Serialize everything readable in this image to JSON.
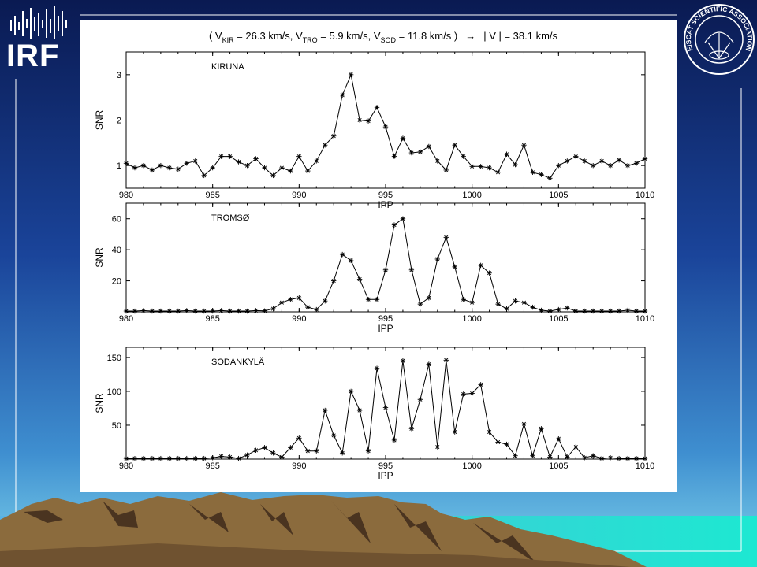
{
  "branding": {
    "left_logo_text": "IRF",
    "right_logo_text": "EISCAT SCIENTIFIC ASSOCIATION"
  },
  "colors": {
    "background_top": "#0a1e56",
    "background_mid": "#1d4fa2",
    "background_bottom": "#5fc0e0",
    "mountain_fill": "#8a6a3c",
    "teal_band": "#24e0d0",
    "panel": "#ffffff"
  },
  "header": {
    "title_parts": {
      "open": "( V",
      "kir_sub": "KIR",
      "kir_val": " = 26.3 km/s, V",
      "tro_sub": "TRO",
      "tro_val": " = 5.9 km/s, V",
      "sod_sub": "SOD",
      "sod_val": " = 11.8 km/s )",
      "arrow": "→",
      "result": "| V | = 38.1 km/s"
    }
  },
  "chart_data": [
    {
      "type": "line",
      "station": "KIRUNA",
      "xlabel": "IPP",
      "ylabel": "SNR",
      "xlim": [
        980,
        1010
      ],
      "ylim": [
        0.5,
        3.5
      ],
      "xticks": [
        980,
        985,
        990,
        995,
        1000,
        1005,
        1010
      ],
      "yticks": [
        1,
        2,
        3
      ],
      "x": [
        980,
        980.5,
        981,
        981.5,
        982,
        982.5,
        983,
        983.5,
        984,
        984.5,
        985,
        985.5,
        986,
        986.5,
        987,
        987.5,
        988,
        988.5,
        989,
        989.5,
        990,
        990.5,
        991,
        991.5,
        992,
        992.5,
        993,
        993.5,
        994,
        994.5,
        995,
        995.5,
        996,
        996.5,
        997,
        997.5,
        998,
        998.5,
        999,
        999.5,
        1000,
        1000.5,
        1001,
        1001.5,
        1002,
        1002.5,
        1003,
        1003.5,
        1004,
        1004.5,
        1005,
        1005.5,
        1006,
        1006.5,
        1007,
        1007.5,
        1008,
        1008.5,
        1009,
        1009.5,
        1010
      ],
      "y": [
        1.05,
        0.95,
        1.0,
        0.9,
        1.0,
        0.95,
        0.92,
        1.05,
        1.1,
        0.78,
        0.95,
        1.2,
        1.2,
        1.08,
        1.0,
        1.15,
        0.95,
        0.78,
        0.95,
        0.88,
        1.2,
        0.88,
        1.1,
        1.45,
        1.65,
        2.55,
        3.0,
        2.0,
        1.98,
        2.28,
        1.85,
        1.2,
        1.6,
        1.28,
        1.3,
        1.42,
        1.1,
        0.9,
        1.45,
        1.2,
        0.98,
        0.98,
        0.95,
        0.85,
        1.25,
        1.02,
        1.45,
        0.85,
        0.8,
        0.72,
        1.0,
        1.1,
        1.2,
        1.1,
        1.0,
        1.1,
        1.0,
        1.12,
        1.0,
        1.05,
        1.15
      ]
    },
    {
      "type": "line",
      "station": "TROMSØ",
      "xlabel": "IPP",
      "ylabel": "SNR",
      "xlim": [
        980,
        1010
      ],
      "ylim": [
        0,
        70
      ],
      "xticks": [
        980,
        985,
        990,
        995,
        1000,
        1005,
        1010
      ],
      "yticks": [
        20,
        40,
        60
      ],
      "x": [
        980,
        980.5,
        981,
        981.5,
        982,
        982.5,
        983,
        983.5,
        984,
        984.5,
        985,
        985.5,
        986,
        986.5,
        987,
        987.5,
        988,
        988.5,
        989,
        989.5,
        990,
        990.5,
        991,
        991.5,
        992,
        992.5,
        993,
        993.5,
        994,
        994.5,
        995,
        995.5,
        996,
        996.5,
        997,
        997.5,
        998,
        998.5,
        999,
        999.5,
        1000,
        1000.5,
        1001,
        1001.5,
        1002,
        1002.5,
        1003,
        1003.5,
        1004,
        1004.5,
        1005,
        1005.5,
        1006,
        1006.5,
        1007,
        1007.5,
        1008,
        1008.5,
        1009,
        1009.5,
        1010
      ],
      "y": [
        0.5,
        0.5,
        0.8,
        0.5,
        0.5,
        0.5,
        0.5,
        0.8,
        0.5,
        0.5,
        0.5,
        0.8,
        0.5,
        0.5,
        0.5,
        0.8,
        0.6,
        2,
        6,
        8,
        9,
        3,
        1.5,
        7,
        20,
        37,
        33,
        21,
        8,
        8,
        27,
        56,
        60,
        27,
        5,
        9,
        34,
        48,
        29,
        8,
        6,
        30,
        25,
        5,
        2,
        7,
        6,
        3,
        1,
        0.5,
        1.5,
        2.5,
        0.5,
        0.5,
        0.5,
        0.5,
        0.5,
        0.5,
        1,
        0.5,
        0.5
      ]
    },
    {
      "type": "line",
      "station": "SODANKYLÄ",
      "xlabel": "IPP",
      "ylabel": "SNR",
      "xlim": [
        980,
        1010
      ],
      "ylim": [
        0,
        165
      ],
      "xticks": [
        980,
        985,
        990,
        995,
        1000,
        1005,
        1010
      ],
      "yticks": [
        50,
        100,
        150
      ],
      "x": [
        980,
        980.5,
        981,
        981.5,
        982,
        982.5,
        983,
        983.5,
        984,
        984.5,
        985,
        985.5,
        986,
        986.5,
        987,
        987.5,
        988,
        988.5,
        989,
        989.5,
        990,
        990.5,
        991,
        991.5,
        992,
        992.5,
        993,
        993.5,
        994,
        994.5,
        995,
        995.5,
        996,
        996.5,
        997,
        997.5,
        998,
        998.5,
        999,
        999.5,
        1000,
        1000.5,
        1001,
        1001.5,
        1002,
        1002.5,
        1003,
        1003.5,
        1004,
        1004.5,
        1005,
        1005.5,
        1006,
        1006.5,
        1007,
        1007.5,
        1008,
        1008.5,
        1009,
        1009.5,
        1010
      ],
      "y": [
        1,
        1,
        1,
        1,
        1,
        1,
        1,
        1,
        1,
        1,
        2,
        4,
        3,
        1,
        6,
        13,
        17,
        9,
        3,
        17,
        31,
        12,
        12,
        72,
        35,
        9,
        100,
        72,
        12,
        134,
        76,
        28,
        145,
        45,
        88,
        140,
        18,
        146,
        40,
        96,
        97,
        110,
        40,
        25,
        22,
        5,
        52,
        5,
        45,
        3,
        30,
        3,
        18,
        2,
        5,
        1,
        2,
        1,
        1,
        1,
        1
      ]
    }
  ]
}
